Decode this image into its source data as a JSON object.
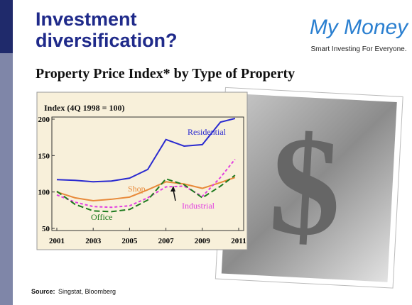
{
  "header": {
    "title_line1": "Investment",
    "title_line2": "diversification?",
    "logo": "My Money",
    "tagline": "Smart Investing For Everyone."
  },
  "subtitle": "Property Price Index* by Type of Property",
  "chart_data": {
    "type": "line",
    "ylabel": "Index (4Q 1998 = 100)",
    "x": [
      2001,
      2002,
      2003,
      2004,
      2005,
      2006,
      2007,
      2008,
      2009,
      2010,
      2010.8
    ],
    "series": [
      {
        "name": "Residential",
        "color": "#2a2ad0",
        "dash": "none",
        "values": [
          117,
          116,
          114,
          115,
          119,
          131,
          172,
          163,
          165,
          196,
          201
        ]
      },
      {
        "name": "Shop",
        "color": "#e88a3a",
        "dash": "none",
        "values": [
          100,
          92,
          88,
          90,
          93,
          103,
          114,
          111,
          105,
          113,
          120
        ]
      },
      {
        "name": "Industrial",
        "color": "#e23ee0",
        "dash": "4 3",
        "values": [
          96,
          86,
          80,
          79,
          81,
          92,
          107,
          108,
          94,
          120,
          145
        ]
      },
      {
        "name": "Office",
        "color": "#1e7a1e",
        "dash": "8 4",
        "values": [
          101,
          83,
          74,
          73,
          76,
          89,
          118,
          110,
          92,
          108,
          123
        ]
      }
    ],
    "xlim": [
      2001,
      2011
    ],
    "xticks": [
      2001,
      2003,
      2005,
      2007,
      2009,
      2011
    ],
    "ylim": [
      50,
      200
    ],
    "yticks": [
      50,
      100,
      150,
      200
    ]
  },
  "footer": {
    "source_label": "Source:",
    "source": "Singstat, Bloomberg"
  }
}
